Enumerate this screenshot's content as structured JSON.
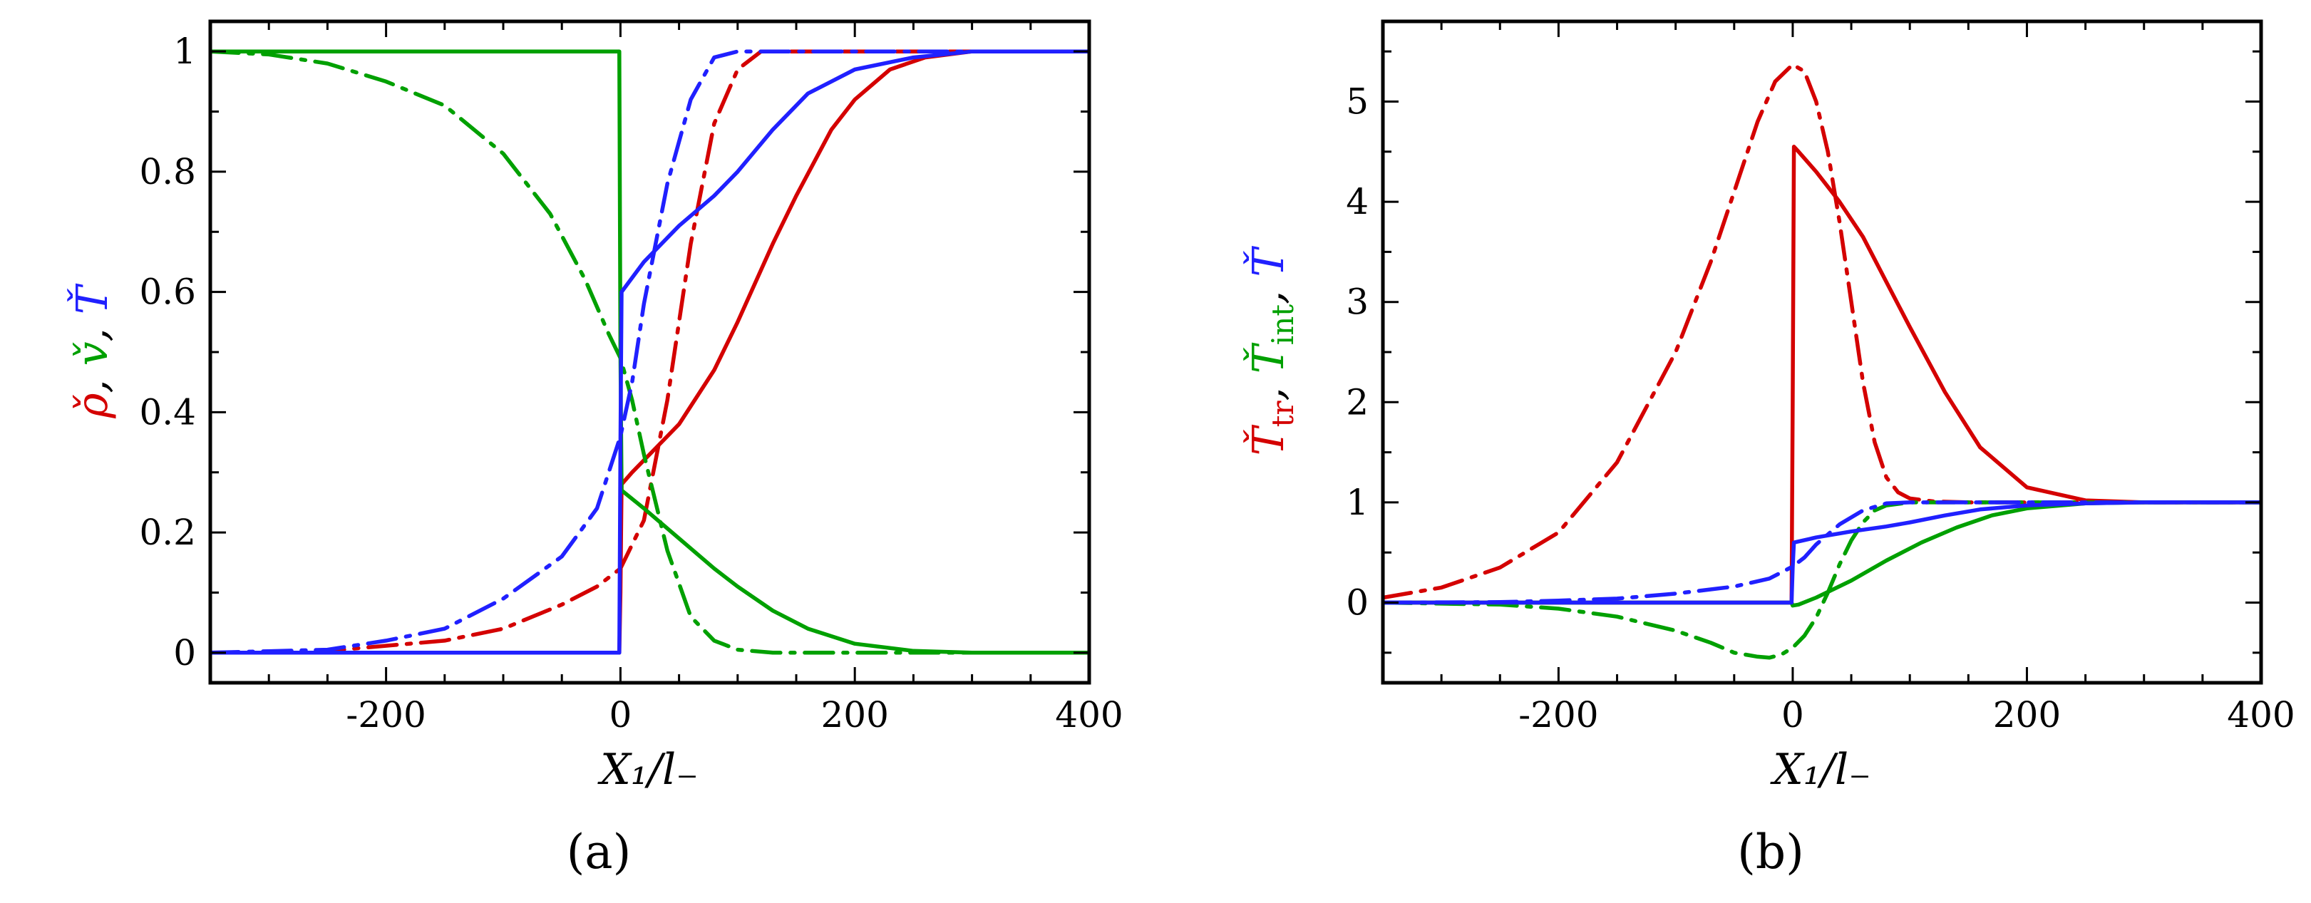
{
  "colors": {
    "rho": "#d40000",
    "v": "#00a000",
    "T": "#2020ff",
    "Ttr": "#d40000",
    "Tint": "#00a000"
  },
  "panels": [
    {
      "id": "a",
      "label": "(a)",
      "xlabel": "X₁/l₋",
      "ylabel_parts": [
        "ρ̌",
        ", ",
        "v̌",
        ", ",
        "Ť"
      ],
      "ylabel_colors": [
        "rho",
        "black",
        "v",
        "black",
        "T"
      ]
    },
    {
      "id": "b",
      "label": "(b)",
      "xlabel": "X₁/l₋",
      "ylabel_parts": [
        "Ť",
        "tr",
        ", ",
        "Ť",
        "int",
        ", ",
        "Ť"
      ],
      "ylabel_colors": [
        "Ttr",
        "Ttr",
        "black",
        "Tint",
        "Tint",
        "black",
        "T"
      ]
    }
  ],
  "chart_data": [
    {
      "type": "line",
      "title": "(a)",
      "xlabel": "X₁/l₋",
      "ylabel": "ρ̌, v̌, Ť",
      "xlim": [
        -350,
        400
      ],
      "ylim": [
        -0.05,
        1.05
      ],
      "xticks": [
        -200,
        0,
        200,
        400
      ],
      "xtick_labels": [
        "-200",
        "0",
        "200",
        "400"
      ],
      "yticks": [
        0,
        0.2,
        0.4,
        0.6,
        0.8,
        1
      ],
      "ytick_labels": [
        "0",
        "0.2",
        "0.4",
        "0.6",
        "0.8",
        "1"
      ],
      "series": [
        {
          "name": "rho-solid",
          "color": "rho",
          "style": "solid",
          "x": [
            -350,
            -1,
            0,
            1,
            10,
            30,
            50,
            80,
            100,
            130,
            150,
            180,
            200,
            230,
            260,
            300,
            350,
            400
          ],
          "y": [
            0,
            0,
            0.1,
            0.28,
            0.3,
            0.34,
            0.38,
            0.47,
            0.55,
            0.68,
            0.76,
            0.87,
            0.92,
            0.97,
            0.99,
            1,
            1,
            1
          ]
        },
        {
          "name": "rho-dashdot",
          "color": "rho",
          "style": "dashdot",
          "x": [
            -350,
            -250,
            -150,
            -100,
            -50,
            -20,
            0,
            20,
            40,
            60,
            80,
            100,
            120,
            400
          ],
          "y": [
            0,
            0.003,
            0.02,
            0.04,
            0.08,
            0.11,
            0.14,
            0.22,
            0.42,
            0.68,
            0.88,
            0.97,
            1,
            1
          ]
        },
        {
          "name": "v-solid",
          "color": "v",
          "style": "solid",
          "x": [
            -350,
            -2,
            -1,
            0,
            1,
            20,
            50,
            80,
            100,
            130,
            160,
            200,
            250,
            300,
            400
          ],
          "y": [
            1,
            1,
            1,
            0.5,
            0.27,
            0.24,
            0.19,
            0.14,
            0.11,
            0.07,
            0.04,
            0.015,
            0.003,
            0,
            0
          ]
        },
        {
          "name": "v-dashdot",
          "color": "v",
          "style": "dashdot",
          "x": [
            -350,
            -300,
            -250,
            -200,
            -150,
            -100,
            -60,
            -30,
            -10,
            0,
            10,
            20,
            40,
            60,
            80,
            100,
            130,
            400
          ],
          "y": [
            1,
            0.995,
            0.98,
            0.95,
            0.91,
            0.83,
            0.73,
            0.62,
            0.53,
            0.49,
            0.42,
            0.33,
            0.17,
            0.06,
            0.02,
            0.005,
            0,
            0
          ]
        },
        {
          "name": "T-solid",
          "color": "T",
          "style": "solid",
          "x": [
            -350,
            -1,
            0,
            1,
            20,
            50,
            80,
            100,
            130,
            160,
            200,
            250,
            300,
            400
          ],
          "y": [
            0,
            0,
            0.35,
            0.6,
            0.65,
            0.71,
            0.76,
            0.8,
            0.87,
            0.93,
            0.97,
            0.99,
            1,
            1
          ]
        },
        {
          "name": "T-dashdot",
          "color": "T",
          "style": "dashdot",
          "x": [
            -350,
            -250,
            -200,
            -150,
            -100,
            -50,
            -20,
            0,
            10,
            20,
            40,
            60,
            80,
            100,
            400
          ],
          "y": [
            0,
            0.005,
            0.02,
            0.04,
            0.09,
            0.16,
            0.24,
            0.36,
            0.45,
            0.58,
            0.78,
            0.92,
            0.99,
            1,
            1
          ]
        }
      ]
    },
    {
      "type": "line",
      "title": "(b)",
      "xlabel": "X₁/l₋",
      "ylabel": "Ťtr, Ťint, Ť",
      "xlim": [
        -350,
        400
      ],
      "ylim": [
        -0.8,
        5.8
      ],
      "xticks": [
        -200,
        0,
        200,
        400
      ],
      "xtick_labels": [
        "-200",
        "0",
        "200",
        "400"
      ],
      "yticks": [
        0,
        1,
        2,
        3,
        4,
        5
      ],
      "ytick_labels": [
        "0",
        "1",
        "2",
        "3",
        "4",
        "5"
      ],
      "series": [
        {
          "name": "Ttr-solid",
          "color": "Ttr",
          "style": "solid",
          "x": [
            -350,
            -1,
            0,
            1,
            5,
            20,
            40,
            60,
            80,
            100,
            130,
            160,
            200,
            250,
            300,
            400
          ],
          "y": [
            0,
            0,
            2,
            4.55,
            4.5,
            4.3,
            4.0,
            3.65,
            3.2,
            2.75,
            2.1,
            1.55,
            1.15,
            1.02,
            1,
            1
          ]
        },
        {
          "name": "Ttr-dashdot",
          "color": "Ttr",
          "style": "dashdot",
          "x": [
            -350,
            -300,
            -250,
            -200,
            -150,
            -100,
            -70,
            -50,
            -30,
            -15,
            0,
            10,
            20,
            30,
            40,
            50,
            60,
            70,
            80,
            90,
            100,
            120,
            150,
            400
          ],
          "y": [
            0.05,
            0.15,
            0.35,
            0.7,
            1.4,
            2.5,
            3.4,
            4.1,
            4.8,
            5.2,
            5.37,
            5.3,
            5.0,
            4.5,
            3.8,
            3.0,
            2.2,
            1.6,
            1.25,
            1.1,
            1.04,
            1.01,
            1,
            1
          ]
        },
        {
          "name": "Tint-solid",
          "color": "Tint",
          "style": "solid",
          "x": [
            -350,
            -1,
            0,
            5,
            20,
            50,
            80,
            110,
            140,
            170,
            200,
            250,
            300,
            400
          ],
          "y": [
            0,
            0,
            -0.03,
            -0.02,
            0.05,
            0.22,
            0.42,
            0.6,
            0.75,
            0.87,
            0.94,
            0.99,
            1,
            1
          ]
        },
        {
          "name": "Tint-dashdot",
          "color": "Tint",
          "style": "dashdot",
          "x": [
            -350,
            -250,
            -200,
            -150,
            -100,
            -70,
            -50,
            -30,
            -20,
            -10,
            0,
            10,
            20,
            30,
            40,
            50,
            60,
            70,
            80,
            100,
            130,
            400
          ],
          "y": [
            0,
            -0.02,
            -0.06,
            -0.14,
            -0.28,
            -0.4,
            -0.5,
            -0.54,
            -0.55,
            -0.52,
            -0.45,
            -0.33,
            -0.15,
            0.1,
            0.38,
            0.62,
            0.8,
            0.92,
            0.97,
            1,
            1,
            1
          ]
        },
        {
          "name": "T-solid-b",
          "color": "T",
          "style": "solid",
          "x": [
            -350,
            -1,
            0,
            1,
            20,
            50,
            80,
            100,
            130,
            160,
            200,
            250,
            300,
            400
          ],
          "y": [
            0,
            0,
            0.35,
            0.6,
            0.65,
            0.71,
            0.76,
            0.8,
            0.87,
            0.93,
            0.97,
            0.99,
            1,
            1
          ]
        },
        {
          "name": "T-dashdot-b",
          "color": "T",
          "style": "dashdot",
          "x": [
            -350,
            -250,
            -200,
            -150,
            -100,
            -50,
            -20,
            0,
            10,
            20,
            40,
            60,
            80,
            100,
            400
          ],
          "y": [
            0,
            0.005,
            0.02,
            0.04,
            0.09,
            0.16,
            0.24,
            0.36,
            0.45,
            0.58,
            0.78,
            0.92,
            0.99,
            1,
            1
          ]
        }
      ]
    }
  ]
}
